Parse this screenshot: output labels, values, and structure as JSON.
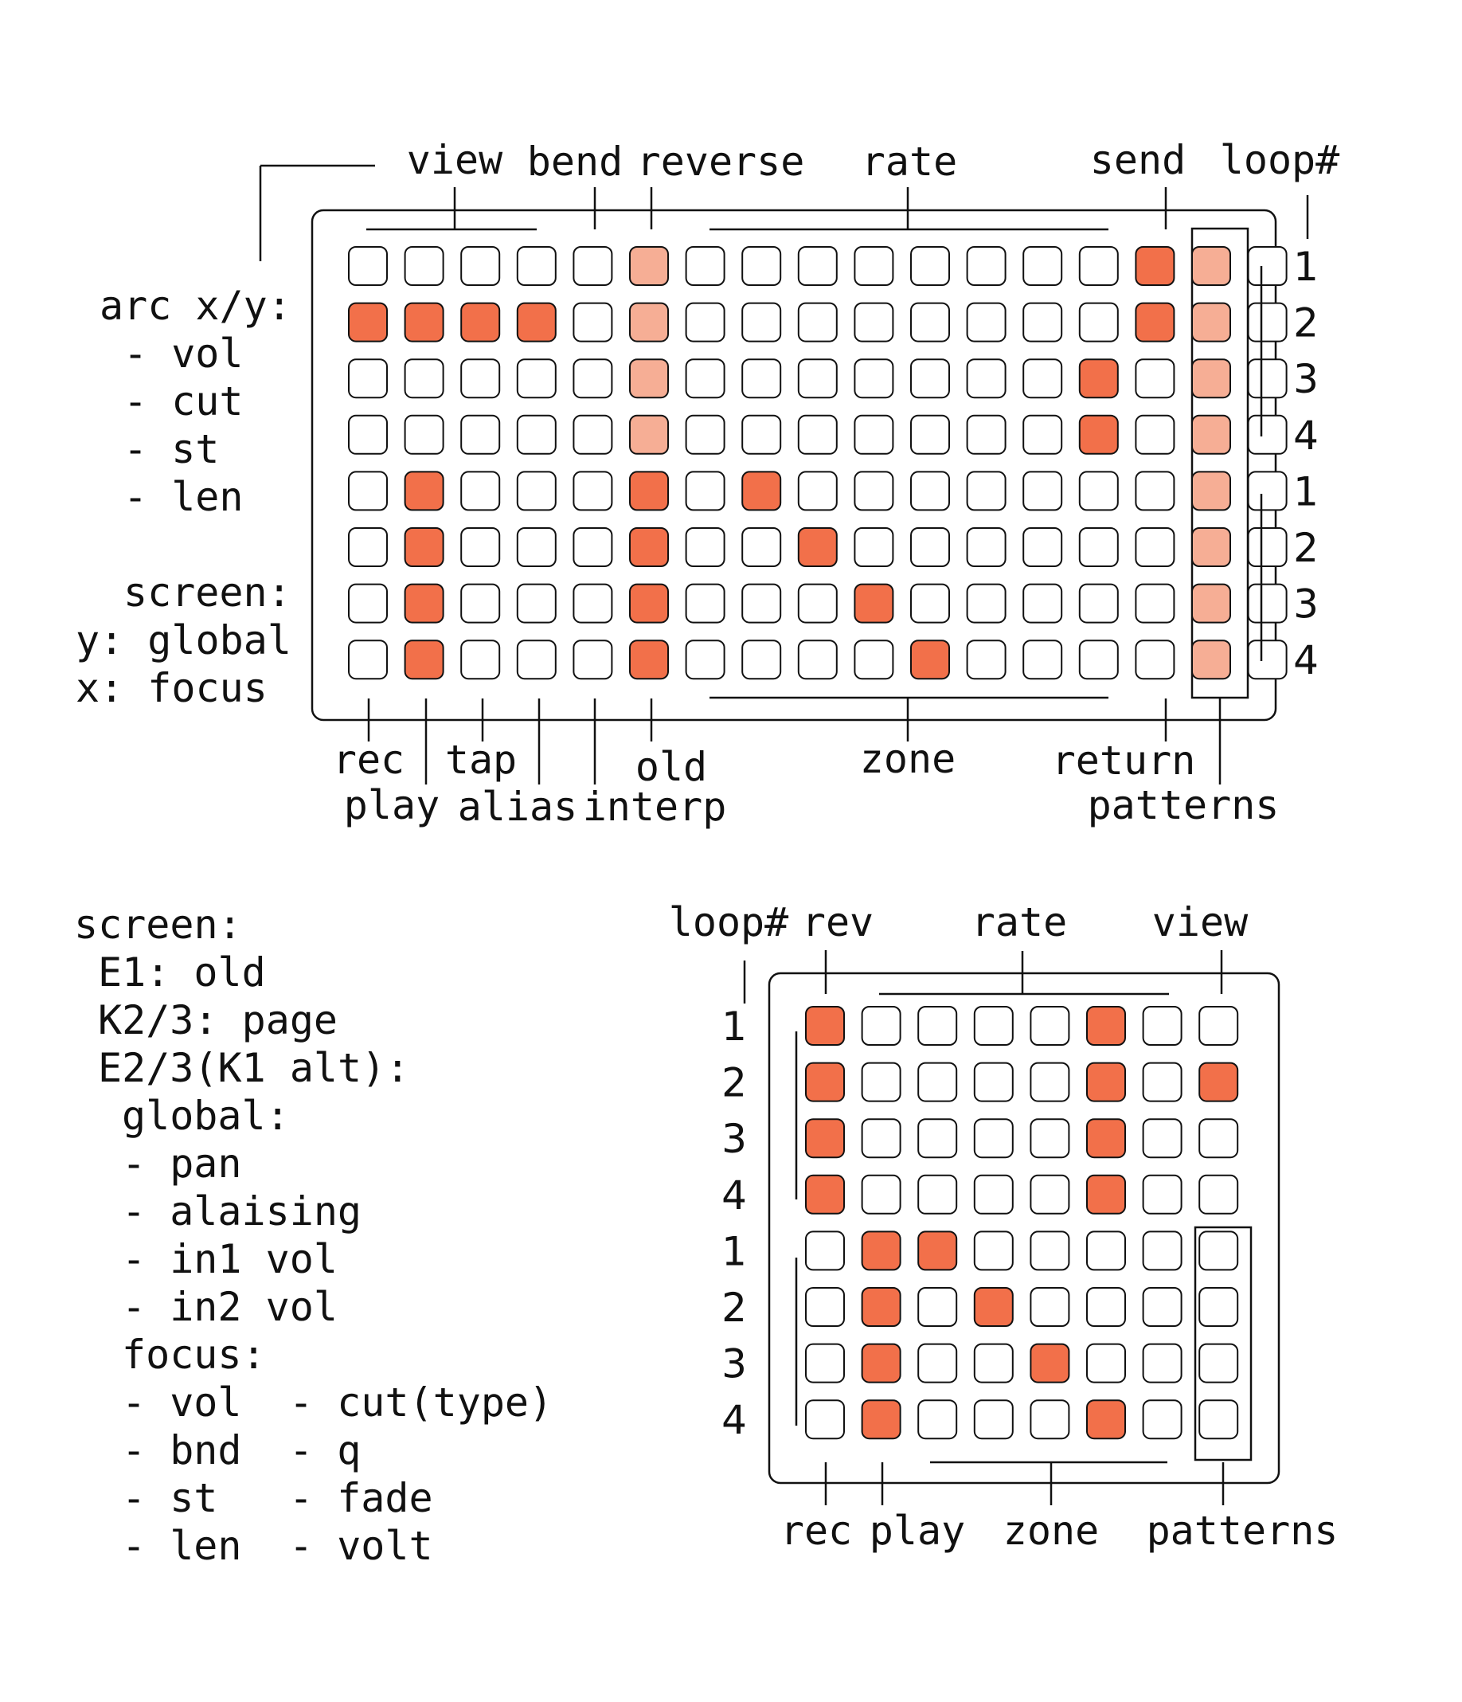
{
  "colors": {
    "on": "#f2704a",
    "dim": "#f6ae95",
    "off": "#ffffff",
    "stroke": "#111111"
  },
  "top_grid": {
    "top_labels": {
      "view": "view",
      "bend": "bend",
      "reverse": "reverse",
      "rate": "rate",
      "send": "send",
      "loop": "loop#"
    },
    "bottom_labels": {
      "rec": "rec",
      "play": "play",
      "tap": "tap",
      "alias": "alias",
      "old": "old",
      "interp": "interp",
      "zone": "zone",
      "return": "return",
      "patterns": "patterns"
    },
    "row_numbers": [
      "1",
      "2",
      "3",
      "4",
      "1",
      "2",
      "3",
      "4"
    ],
    "cells": [
      "00000200000000120",
      "11110200000000120",
      "00000200000001020",
      "00000200000001020",
      "01000101000000020",
      "01000100100000020",
      "01000100010000020",
      "01000100001000020"
    ]
  },
  "left_notes": {
    "arc_title": "arc x/y:",
    "arc_items": [
      "- vol",
      "- cut",
      "- st",
      "- len"
    ],
    "screen_title": "screen:",
    "screen_y": "y: global",
    "screen_x": "x:  focus"
  },
  "screen_notes": {
    "title": "screen:",
    "e1": "E1: old",
    "k23": "K2/3: page",
    "e23": "E2/3(K1 alt):",
    "global_title": "global:",
    "global_items": [
      "- pan",
      "- alaising",
      "- in1 vol",
      "- in2 vol"
    ],
    "focus_title": "focus:",
    "focus_col1": [
      "- vol",
      "- bnd",
      "- st",
      "- len"
    ],
    "focus_col2": [
      "- cut(type)",
      "- q",
      "- fade",
      "- volt"
    ]
  },
  "bottom_grid": {
    "top_labels": {
      "loop": "loop#",
      "rev": "rev",
      "rate": "rate",
      "view": "view"
    },
    "bottom_labels": {
      "rec": "rec",
      "play": "play",
      "zone": "zone",
      "patterns": "patterns"
    },
    "row_numbers": [
      "1",
      "2",
      "3",
      "4",
      "1",
      "2",
      "3",
      "4"
    ],
    "cells": [
      "10000100",
      "10000101",
      "10000100",
      "10000100",
      "01100000",
      "01010000",
      "01001000",
      "01000100"
    ]
  }
}
